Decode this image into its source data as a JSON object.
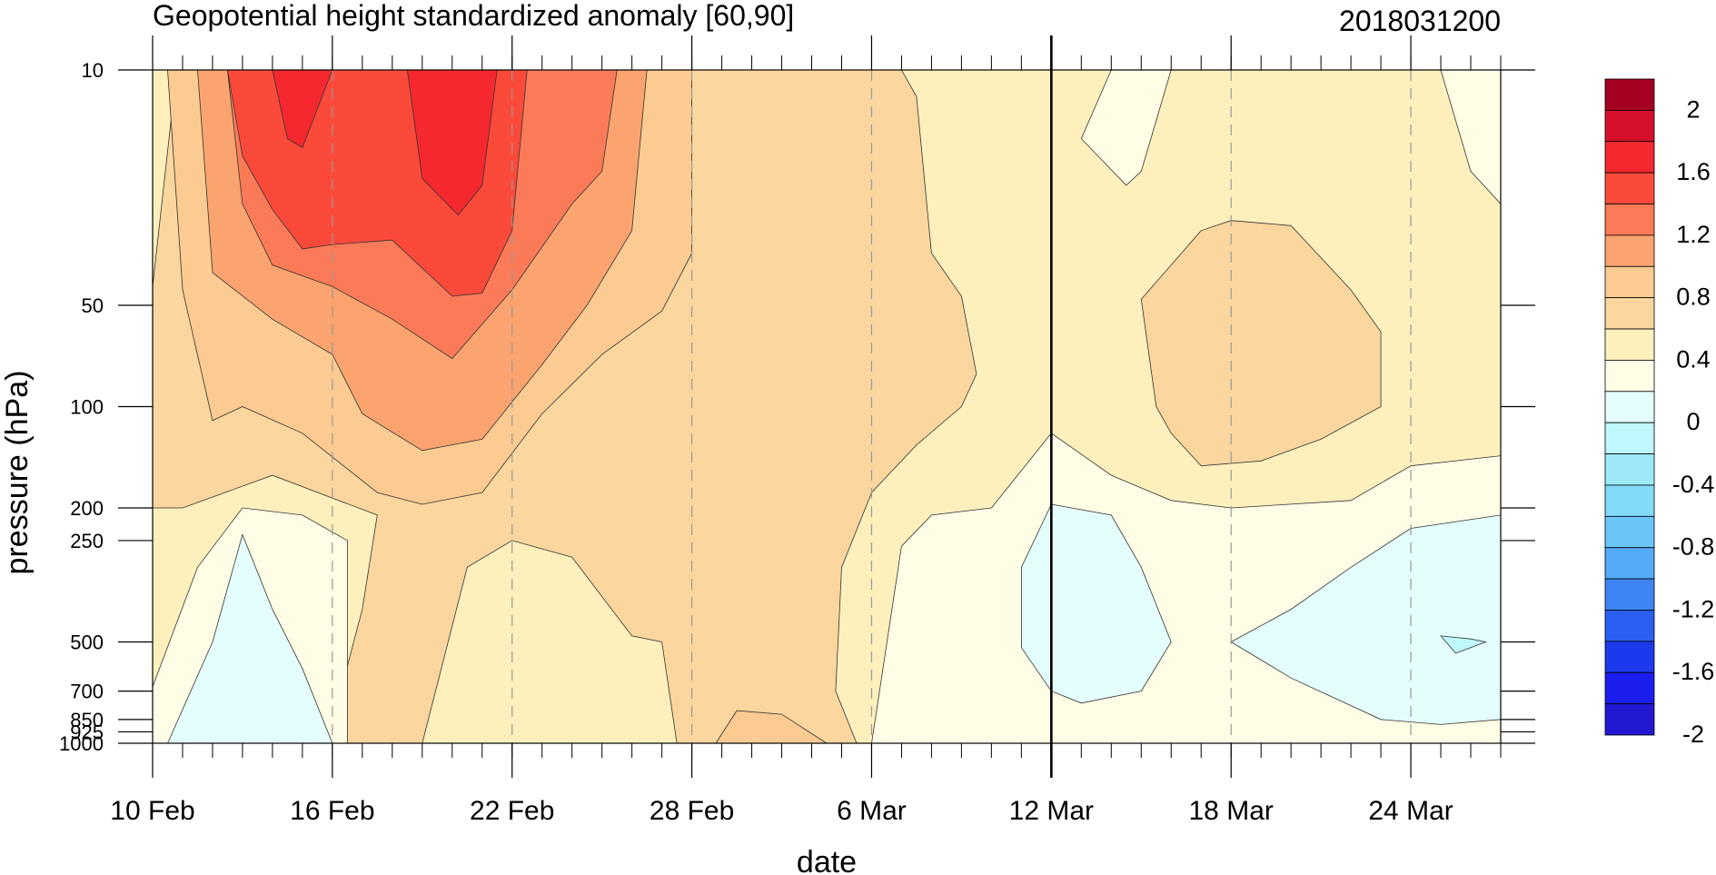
{
  "chart_data": {
    "type": "heatmap",
    "title": "Geopotential height standardized anomaly [60,90]",
    "subtitle": "2018031200",
    "xlabel": "date",
    "ylabel": "pressure (hPa)",
    "x_start": "2018-02-10",
    "x_end": "2018-03-27",
    "x_ticks": [
      "10 Feb",
      "16 Feb",
      "22 Feb",
      "28 Feb",
      "6 Mar",
      "12 Mar",
      "18 Mar",
      "24 Mar"
    ],
    "x_tick_dates": [
      "2018-02-10",
      "2018-02-16",
      "2018-02-22",
      "2018-02-28",
      "2018-03-06",
      "2018-03-12",
      "2018-03-18",
      "2018-03-24"
    ],
    "y_ticks": [
      10,
      50,
      100,
      200,
      250,
      500,
      700,
      850,
      925,
      1000
    ],
    "y_tick_labels": [
      "10",
      "50",
      "100",
      "200",
      "250",
      "500",
      "700",
      "850",
      "925",
      "1000"
    ],
    "y_range": [
      10,
      1000
    ],
    "y_scale": "log, reversed",
    "vertical_marker": "2018-03-12",
    "colorbar": {
      "levels": [
        -2,
        -1.8,
        -1.6,
        -1.4,
        -1.2,
        -1,
        -0.8,
        -0.6,
        -0.4,
        -0.2,
        0,
        0.2,
        0.4,
        0.6,
        0.8,
        1,
        1.2,
        1.4,
        1.6,
        1.8,
        2
      ],
      "labels": [
        "2",
        "1.6",
        "1.2",
        "0.8",
        "0.4",
        "0",
        "-0.4",
        "-0.8",
        "-1.2",
        "-1.6",
        "-2"
      ],
      "label_values": [
        2,
        1.6,
        1.2,
        0.8,
        0.4,
        0,
        -0.4,
        -0.8,
        -1.2,
        -1.6,
        -2
      ],
      "colors_top_to_bottom": [
        "#a50021",
        "#d5102b",
        "#f52830",
        "#fc4a3a",
        "#fb7b58",
        "#fba46f",
        "#fbcb91",
        "#fbd69e",
        "#fdf0bd",
        "#fffde6",
        "#e4fdfd",
        "#bff7fc",
        "#9de9fa",
        "#82dbf8",
        "#6ac6f6",
        "#54aaf6",
        "#3e85f5",
        "#2a5ff2",
        "#1c39ec",
        "#1c1ef0",
        "#2218d2"
      ]
    },
    "regions": [
      {
        "level": 0.2,
        "color": "#fdf0bd",
        "points": [
          [
            "2018-02-10",
            10
          ],
          [
            "2018-03-27",
            10
          ],
          [
            "2018-03-27",
            1000
          ],
          [
            "2018-02-10",
            1000
          ]
        ]
      },
      {
        "level": 0.4,
        "color": "#fbd69e",
        "points": [
          [
            "2018-02-10",
            44
          ],
          [
            "2018-02-10.8",
            10
          ],
          [
            "2018-03-05",
            10
          ],
          [
            "2018-03-07",
            10
          ],
          [
            "2018-03-07.5",
            12
          ],
          [
            "2018-03-08",
            35
          ],
          [
            "2018-03-09",
            47
          ],
          [
            "2018-03-09.5",
            80
          ],
          [
            "2018-03-09",
            100
          ],
          [
            "2018-03-07.5",
            130
          ],
          [
            "2018-03-06",
            180
          ],
          [
            "2018-03-05",
            300
          ],
          [
            "2018-03-04.8",
            700
          ],
          [
            "2018-03-05.5",
            1000
          ],
          [
            "2018-02-15",
            1000
          ],
          [
            "2018-02-16",
            870
          ],
          [
            "2018-02-17",
            400
          ],
          [
            "2018-02-17.5",
            210
          ],
          [
            "2018-02-14",
            160
          ],
          [
            "2018-02-11",
            200
          ],
          [
            "2018-02-10",
            200
          ]
        ]
      },
      {
        "level": 0.4,
        "color": "#fbd69e",
        "points": [
          [
            "2018-03-15",
            48
          ],
          [
            "2018-03-17",
            30
          ],
          [
            "2018-03-18",
            28
          ],
          [
            "2018-03-20",
            29
          ],
          [
            "2018-03-22",
            45
          ],
          [
            "2018-03-23",
            60
          ],
          [
            "2018-03-23",
            100
          ],
          [
            "2018-03-21",
            125
          ],
          [
            "2018-03-19",
            145
          ],
          [
            "2018-03-17",
            150
          ],
          [
            "2018-03-16",
            120
          ],
          [
            "2018-03-15.5",
            100
          ]
        ]
      },
      {
        "level": 0.2,
        "color": "#fdf0bd",
        "points": [
          [
            "2018-02-19",
            1000
          ],
          [
            "2018-02-20.5",
            300
          ],
          [
            "2018-02-22",
            250
          ],
          [
            "2018-02-24",
            280
          ],
          [
            "2018-02-26",
            480
          ],
          [
            "2018-02-27",
            500
          ],
          [
            "2018-02-27.5",
            1000
          ]
        ]
      },
      {
        "level": 0.6,
        "color": "#fbcb91",
        "points": [
          [
            "2018-02-28.8",
            1000
          ],
          [
            "2018-03-01.5",
            800
          ],
          [
            "2018-03-03",
            820
          ],
          [
            "2018-03-04.5",
            1000
          ]
        ]
      },
      {
        "level": 0.0,
        "color": "#fffde6",
        "points": [
          [
            "2018-02-10",
            680
          ],
          [
            "2018-02-11.5",
            300
          ],
          [
            "2018-02-13",
            200
          ],
          [
            "2018-02-15",
            210
          ],
          [
            "2018-02-16.5",
            250
          ],
          [
            "2018-02-16.5",
            1000
          ],
          [
            "2018-02-10",
            1000
          ]
        ]
      },
      {
        "level": -0.2,
        "color": "#e4fdfd",
        "points": [
          [
            "2018-02-10.5",
            1000
          ],
          [
            "2018-02-12",
            500
          ],
          [
            "2018-02-13",
            240
          ],
          [
            "2018-02-14",
            400
          ],
          [
            "2018-02-15",
            600
          ],
          [
            "2018-02-16",
            1000
          ]
        ]
      },
      {
        "level": 0.0,
        "color": "#fffde6",
        "points": [
          [
            "2018-03-06",
            1000
          ],
          [
            "2018-03-07",
            260
          ],
          [
            "2018-03-08",
            210
          ],
          [
            "2018-03-10",
            200
          ],
          [
            "2018-03-12",
            120
          ],
          [
            "2018-03-14",
            160
          ],
          [
            "2018-03-16",
            190
          ],
          [
            "2018-03-18",
            200
          ],
          [
            "2018-03-22",
            190
          ],
          [
            "2018-03-24",
            150
          ],
          [
            "2018-03-27",
            140
          ],
          [
            "2018-03-27",
            1000
          ],
          [
            "2018-03-16",
            1000
          ],
          [
            "2018-03-14",
            1000
          ]
        ]
      },
      {
        "level": 0.0,
        "color": "#fffde6",
        "points": [
          [
            "2018-03-14",
            10
          ],
          [
            "2018-03-16",
            10
          ],
          [
            "2018-03-15",
            20
          ],
          [
            "2018-03-14.5",
            22
          ],
          [
            "2018-03-13",
            16
          ]
        ]
      },
      {
        "level": 0.0,
        "color": "#fffde6",
        "points": [
          [
            "2018-03-25",
            10
          ],
          [
            "2018-03-27",
            10
          ],
          [
            "2018-03-27",
            25
          ],
          [
            "2018-03-26",
            20
          ]
        ]
      },
      {
        "level": -0.2,
        "color": "#e4fdfd",
        "points": [
          [
            "2018-03-12",
            195
          ],
          [
            "2018-03-14",
            210
          ],
          [
            "2018-03-15",
            300
          ],
          [
            "2018-03-16",
            500
          ],
          [
            "2018-03-15",
            700
          ],
          [
            "2018-03-13",
            760
          ],
          [
            "2018-03-12",
            700
          ],
          [
            "2018-03-11",
            520
          ],
          [
            "2018-03-11",
            300
          ]
        ]
      },
      {
        "level": -0.2,
        "color": "#e4fdfd",
        "points": [
          [
            "2018-03-18",
            500
          ],
          [
            "2018-03-20",
            400
          ],
          [
            "2018-03-22",
            300
          ],
          [
            "2018-03-24",
            230
          ],
          [
            "2018-03-27",
            210
          ],
          [
            "2018-03-27",
            850
          ],
          [
            "2018-03-25",
            880
          ],
          [
            "2018-03-23",
            850
          ],
          [
            "2018-03-20",
            640
          ]
        ]
      },
      {
        "level": -0.4,
        "color": "#bff7fc",
        "points": [
          [
            "2018-03-25",
            480
          ],
          [
            "2018-03-26",
            490
          ],
          [
            "2018-03-26.5",
            500
          ],
          [
            "2018-03-25.5",
            540
          ]
        ]
      },
      {
        "level": 0.6,
        "color": "#fbcb91",
        "points": [
          [
            "2018-02-10.5",
            10
          ],
          [
            "2018-02-28",
            10
          ],
          [
            "2018-02-28",
            35
          ],
          [
            "2018-02-27",
            52
          ],
          [
            "2018-02-25",
            70
          ],
          [
            "2018-02-23",
            105
          ],
          [
            "2018-02-21",
            180
          ],
          [
            "2018-02-19",
            195
          ],
          [
            "2018-02-17.5",
            180
          ],
          [
            "2018-02-15",
            120
          ],
          [
            "2018-02-13",
            100
          ],
          [
            "2018-02-12",
            110
          ],
          [
            "2018-02-11",
            45
          ]
        ]
      },
      {
        "level": 0.8,
        "color": "#fba46f",
        "points": [
          [
            "2018-02-11.5",
            10
          ],
          [
            "2018-02-26.5",
            10
          ],
          [
            "2018-02-26",
            30
          ],
          [
            "2018-02-24.5",
            50
          ],
          [
            "2018-02-23",
            75
          ],
          [
            "2018-02-21",
            125
          ],
          [
            "2018-02-19",
            135
          ],
          [
            "2018-02-17",
            105
          ],
          [
            "2018-02-16",
            70
          ],
          [
            "2018-02-14",
            55
          ],
          [
            "2018-02-12",
            40
          ]
        ]
      },
      {
        "level": 1.0,
        "color": "#fb7b58",
        "points": [
          [
            "2018-02-12.5",
            10
          ],
          [
            "2018-02-25.5",
            10
          ],
          [
            "2018-02-25",
            20
          ],
          [
            "2018-02-24",
            25
          ],
          [
            "2018-02-22",
            45
          ],
          [
            "2018-02-20",
            72
          ],
          [
            "2018-02-18",
            55
          ],
          [
            "2018-02-16",
            44
          ],
          [
            "2018-02-14",
            38
          ],
          [
            "2018-02-13",
            25
          ]
        ]
      },
      {
        "level": 1.2,
        "color": "#fc4a3a",
        "points": [
          [
            "2018-02-12.5",
            10
          ],
          [
            "2018-02-22.5",
            10
          ],
          [
            "2018-02-22",
            30
          ],
          [
            "2018-02-21",
            46
          ],
          [
            "2018-02-20",
            47
          ],
          [
            "2018-02-18",
            32
          ],
          [
            "2018-02-16",
            33
          ],
          [
            "2018-02-15",
            34
          ],
          [
            "2018-02-14",
            26
          ],
          [
            "2018-02-13",
            18
          ]
        ]
      },
      {
        "level": 1.4,
        "color": "#f52830",
        "points": [
          [
            "2018-02-14",
            10
          ],
          [
            "2018-02-16",
            10
          ],
          [
            "2018-02-15",
            17
          ],
          [
            "2018-02-14.5",
            16
          ]
        ]
      },
      {
        "level": 1.4,
        "color": "#f52830",
        "points": [
          [
            "2018-02-18.5",
            10
          ],
          [
            "2018-02-21.5",
            10
          ],
          [
            "2018-02-21",
            22
          ],
          [
            "2018-02-20.2",
            27
          ],
          [
            "2018-02-19",
            21
          ]
        ]
      }
    ]
  }
}
